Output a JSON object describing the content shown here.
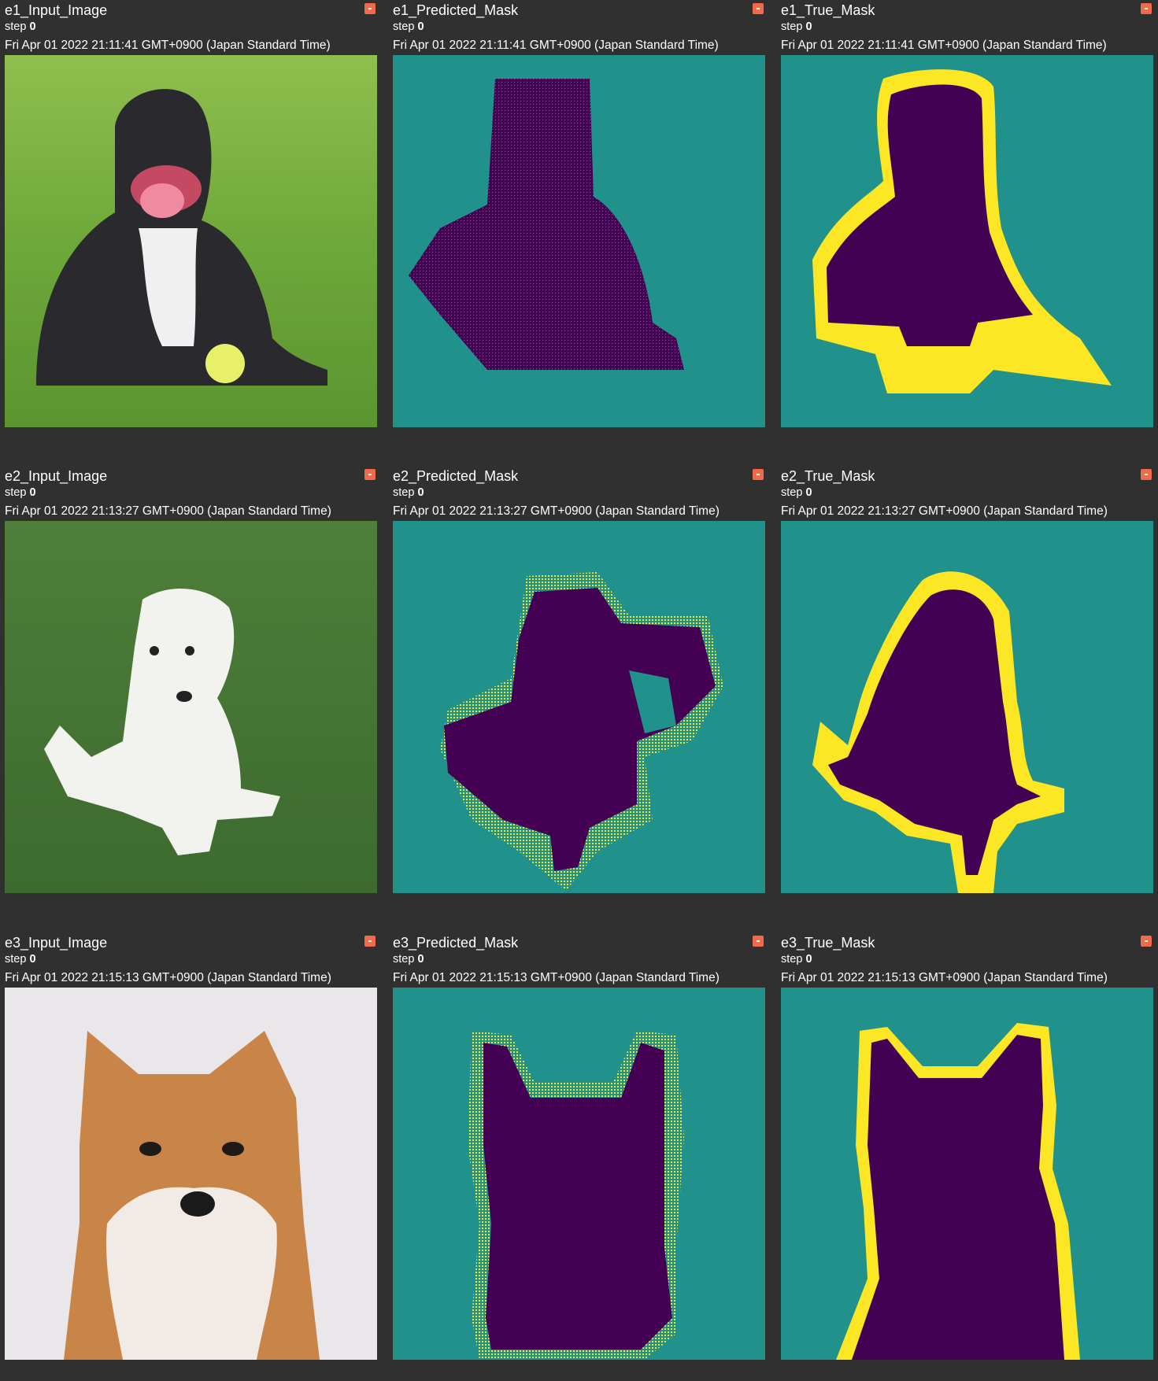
{
  "colors": {
    "accent": "#f26a4a",
    "mask_background": "#21918c",
    "mask_object": "#440154",
    "mask_border": "#fde725",
    "page_background": "#303030"
  },
  "step_label": "step",
  "cards": [
    {
      "title": "e1_Input_Image",
      "step": "0",
      "timestamp": "Fri Apr 01 2022 21:11:41 GMT+0900 (Japan Standard Time)",
      "icon": "expand-icon"
    },
    {
      "title": "e1_Predicted_Mask",
      "step": "0",
      "timestamp": "Fri Apr 01 2022 21:11:41 GMT+0900 (Japan Standard Time)",
      "icon": "expand-icon"
    },
    {
      "title": "e1_True_Mask",
      "step": "0",
      "timestamp": "Fri Apr 01 2022 21:11:41 GMT+0900 (Japan Standard Time)",
      "icon": "expand-icon"
    },
    {
      "title": "e2_Input_Image",
      "step": "0",
      "timestamp": "Fri Apr 01 2022 21:13:27 GMT+0900 (Japan Standard Time)",
      "icon": "expand-icon"
    },
    {
      "title": "e2_Predicted_Mask",
      "step": "0",
      "timestamp": "Fri Apr 01 2022 21:13:27 GMT+0900 (Japan Standard Time)",
      "icon": "expand-icon"
    },
    {
      "title": "e2_True_Mask",
      "step": "0",
      "timestamp": "Fri Apr 01 2022 21:13:27 GMT+0900 (Japan Standard Time)",
      "icon": "expand-icon"
    },
    {
      "title": "e3_Input_Image",
      "step": "0",
      "timestamp": "Fri Apr 01 2022 21:15:13 GMT+0900 (Japan Standard Time)",
      "icon": "expand-icon"
    },
    {
      "title": "e3_Predicted_Mask",
      "step": "0",
      "timestamp": "Fri Apr 01 2022 21:15:13 GMT+0900 (Japan Standard Time)",
      "icon": "expand-icon"
    },
    {
      "title": "e3_True_Mask",
      "step": "0",
      "timestamp": "Fri Apr 01 2022 21:15:13 GMT+0900 (Japan Standard Time)",
      "icon": "expand-icon"
    }
  ]
}
